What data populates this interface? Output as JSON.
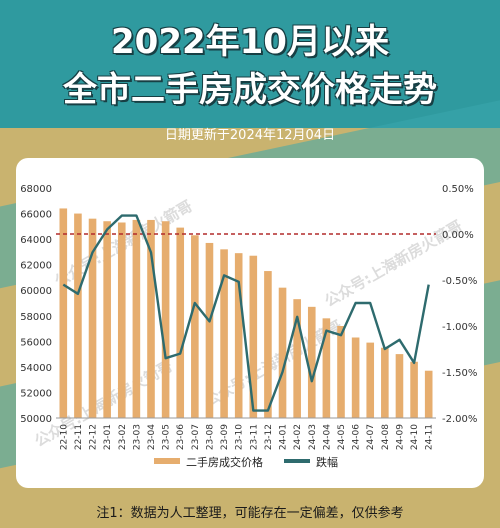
{
  "header": {
    "title_line1": "2022年10月以来",
    "title_line2": "全市二手房成交价格走势",
    "subtitle": "日期更新于2024年12月04日"
  },
  "footer": {
    "note": "注1：数据为人工整理，可能存在一定偏差，仅供参考"
  },
  "watermark": "公众号:上海新房火箭哥",
  "colors": {
    "bar": "#e6ad6e",
    "line": "#2e6b6e",
    "zero_line": "#b22b2b",
    "title_shadow": "#173f44"
  },
  "chart_data": {
    "type": "bar",
    "categories": [
      "22-10",
      "22-11",
      "22-12",
      "23-01",
      "23-02",
      "23-03",
      "23-04",
      "23-05",
      "23-06",
      "23-07",
      "23-08",
      "23-09",
      "23-10",
      "23-11",
      "23-12",
      "24-01",
      "24-02",
      "24-03",
      "24-04",
      "24-05",
      "24-06",
      "24-07",
      "24-08",
      "24-09",
      "24-10",
      "24-11"
    ],
    "series": [
      {
        "name": "二手房成交价格",
        "type": "bar",
        "axis": "left",
        "values": [
          66400,
          66000,
          65600,
          65400,
          65300,
          65500,
          65500,
          65400,
          64900,
          64300,
          63700,
          63200,
          62900,
          62700,
          61500,
          60200,
          59300,
          58700,
          57800,
          57200,
          56300,
          55900,
          55500,
          55000,
          54400,
          53700
        ]
      },
      {
        "name": "跌幅",
        "type": "line",
        "axis": "right",
        "values": [
          -0.55,
          -0.65,
          -0.2,
          0.05,
          0.2,
          0.2,
          -0.2,
          -1.35,
          -1.3,
          -0.75,
          -0.95,
          -0.45,
          -0.52,
          -1.92,
          -1.92,
          -1.5,
          -0.9,
          -1.6,
          -1.05,
          -1.1,
          -0.75,
          -0.75,
          -1.25,
          -1.15,
          -1.4,
          -0.55
        ]
      }
    ],
    "y_left": {
      "min": 50000,
      "max": 68000,
      "ticks": [
        50000,
        52000,
        54000,
        56000,
        58000,
        60000,
        62000,
        64000,
        66000,
        68000
      ]
    },
    "y_right": {
      "min": -2.0,
      "max": 0.5,
      "ticks": [
        "0.50%",
        "0.00%",
        "-0.50%",
        "-1.00%",
        "-1.50%",
        "-2.00%"
      ],
      "tick_values": [
        0.5,
        0.0,
        -0.5,
        -1.0,
        -1.5,
        -2.0
      ]
    },
    "reference_line": {
      "axis": "right",
      "value": 0.0,
      "style": "dashed"
    },
    "legend_placement": "bottom-center"
  }
}
